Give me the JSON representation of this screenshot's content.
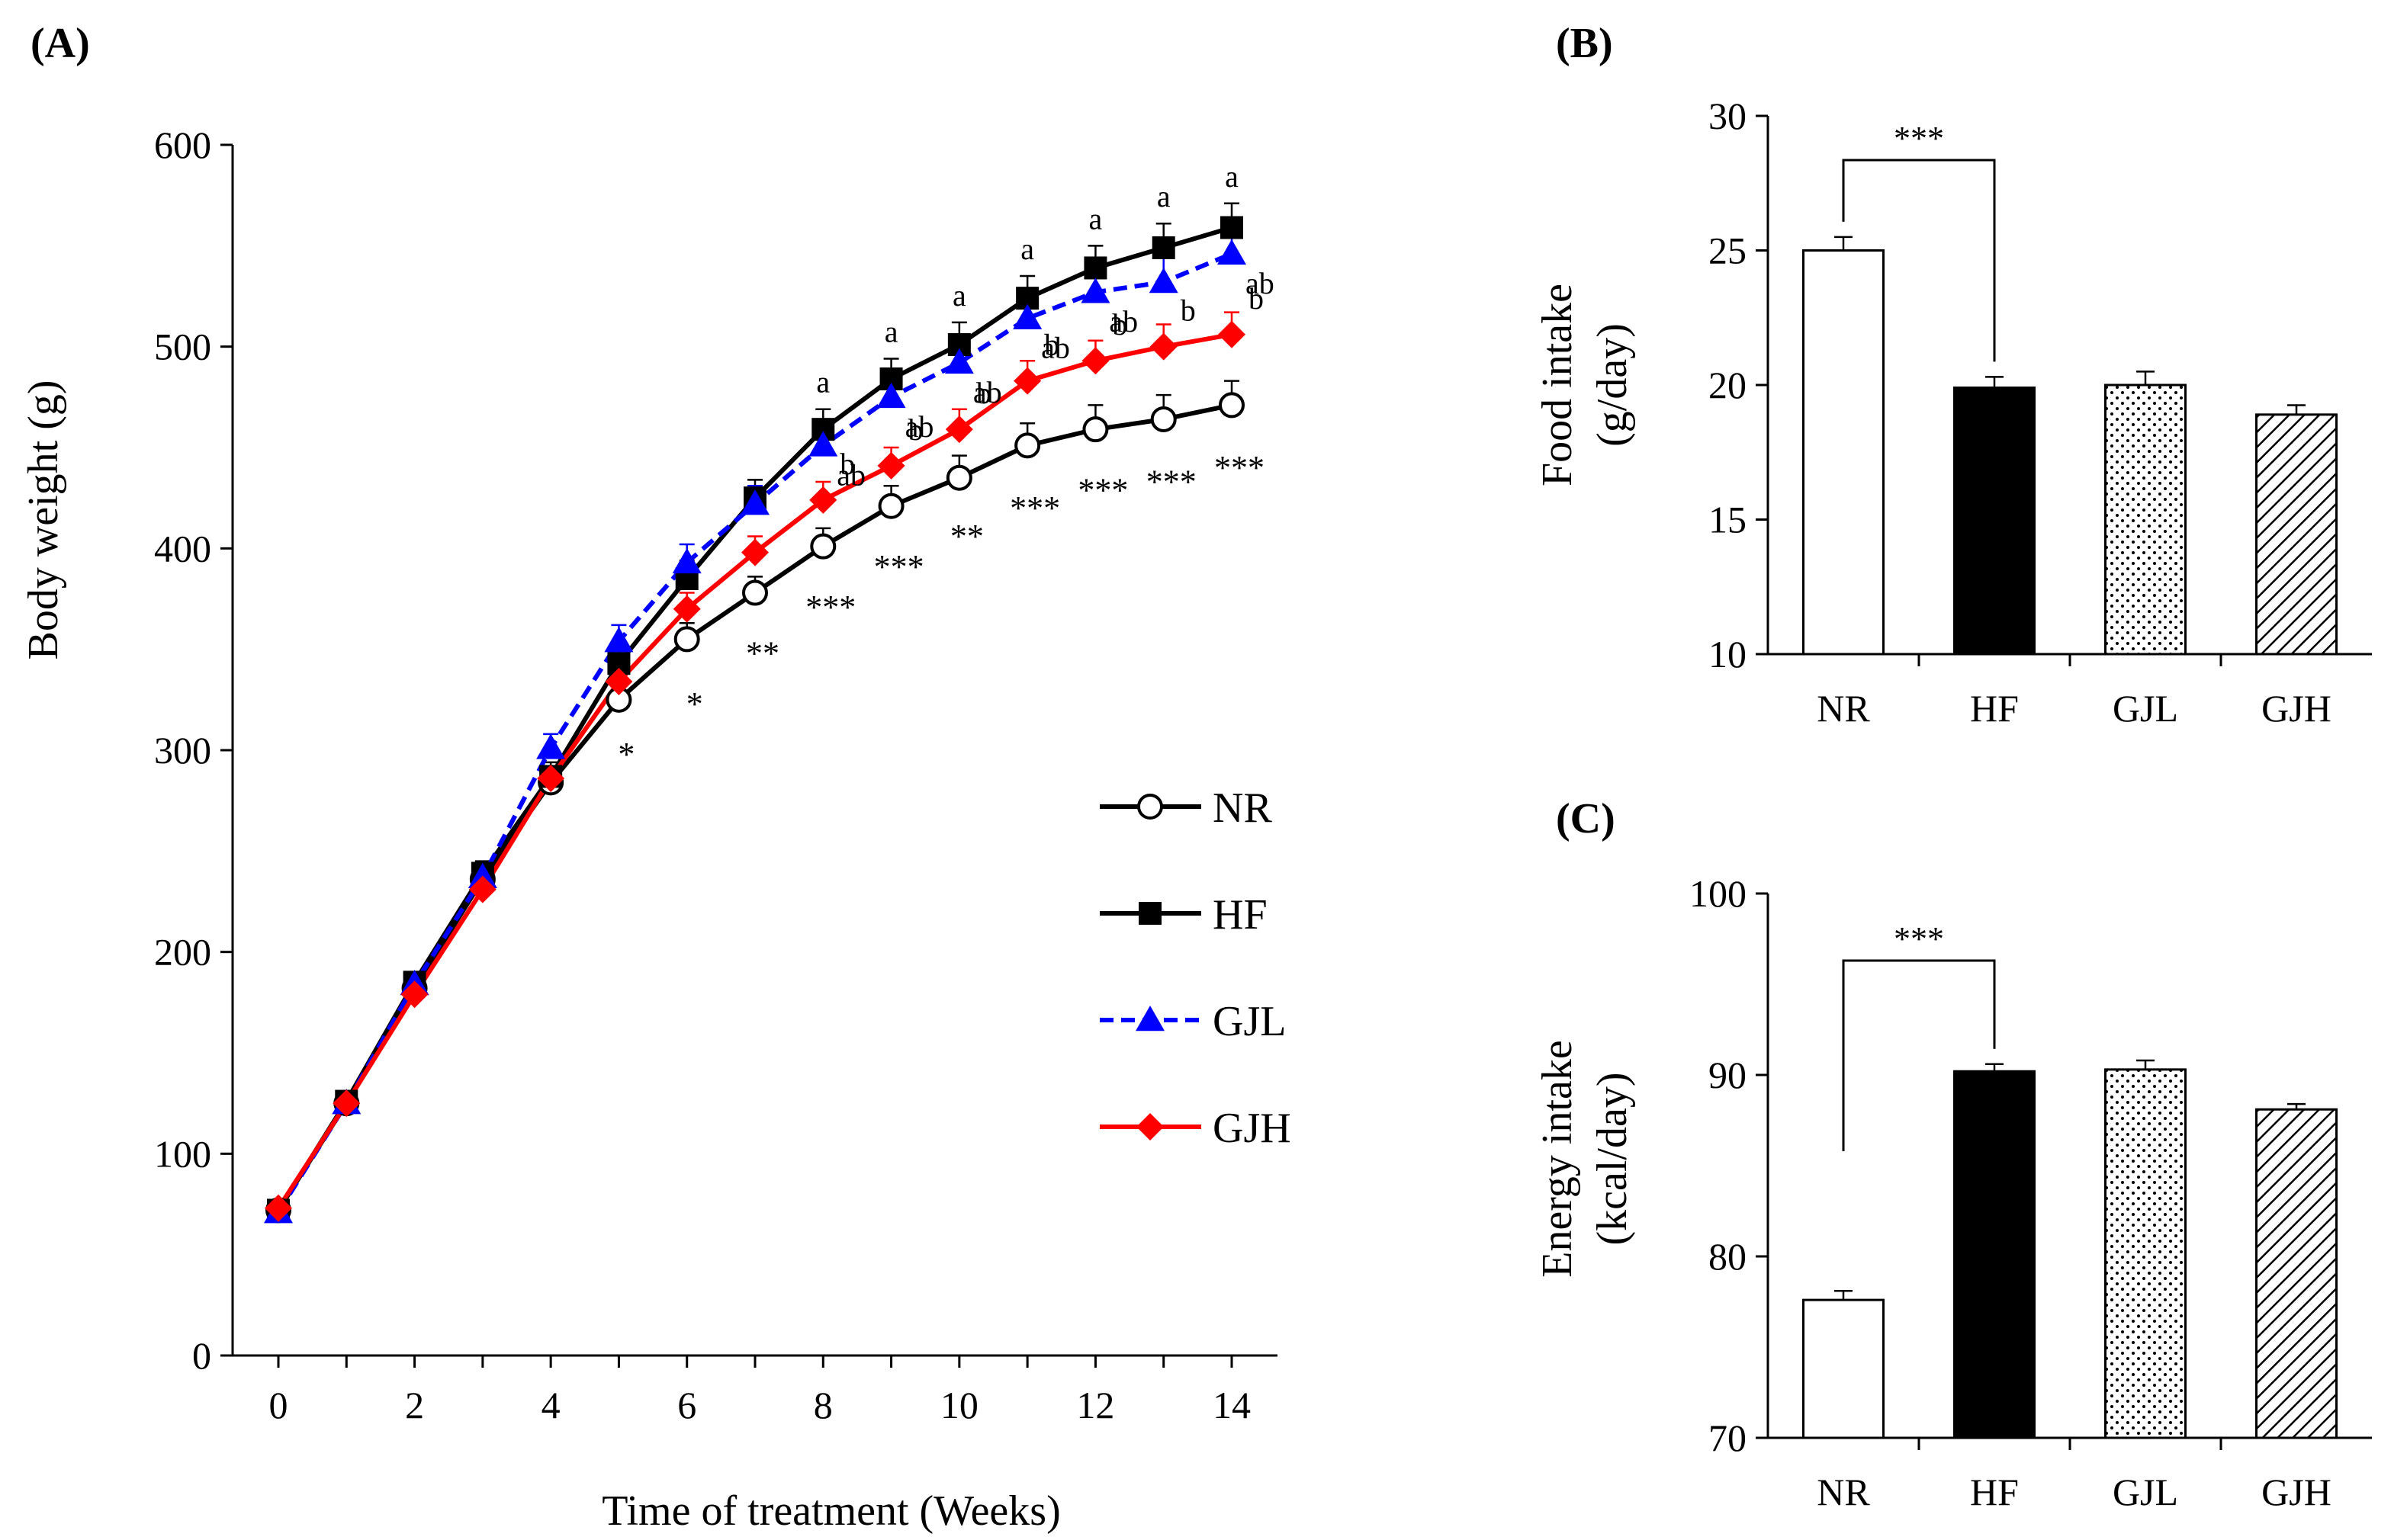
{
  "chart_data": [
    {
      "panel": "(A)",
      "type": "line",
      "xlabel": "Time of treatment  (Weeks)",
      "ylabel": "Body weight  (g)",
      "xlim": [
        0,
        14
      ],
      "ylim": [
        0,
        600
      ],
      "xticks": [
        0,
        2,
        4,
        6,
        8,
        10,
        12,
        14
      ],
      "yticks": [
        0,
        100,
        200,
        300,
        400,
        500,
        600
      ],
      "x": [
        0,
        1,
        2,
        3,
        4,
        5,
        6,
        7,
        8,
        9,
        10,
        11,
        12,
        13,
        14
      ],
      "series": [
        {
          "name": "NR",
          "color": "#000000",
          "marker": "circle-open",
          "dash": false,
          "values": [
            72,
            125,
            182,
            236,
            284,
            325,
            355,
            378,
            401,
            421,
            435,
            451,
            459,
            464,
            471
          ],
          "errors": [
            3,
            4,
            5,
            6,
            6,
            7,
            8,
            8,
            9,
            10,
            11,
            11,
            12,
            12,
            12
          ]
        },
        {
          "name": "HF",
          "color": "#000000",
          "marker": "square",
          "dash": false,
          "values": [
            72,
            126,
            185,
            239,
            287,
            343,
            385,
            425,
            459,
            484,
            501,
            524,
            539,
            549,
            559
          ],
          "errors": [
            3,
            4,
            5,
            6,
            7,
            8,
            9,
            9,
            10,
            10,
            11,
            11,
            11,
            12,
            12
          ]
        },
        {
          "name": "GJL",
          "color": "#0000ff",
          "marker": "triangle",
          "dash": true,
          "values": [
            71,
            125,
            184,
            237,
            301,
            354,
            393,
            422,
            451,
            475,
            492,
            514,
            527,
            532,
            546
          ],
          "errors": [
            3,
            4,
            5,
            6,
            7,
            8,
            9,
            9,
            10,
            10,
            11,
            11,
            12,
            12,
            12
          ]
        },
        {
          "name": "GJH",
          "color": "#ff0000",
          "marker": "diamond",
          "dash": false,
          "values": [
            73,
            125,
            179,
            231,
            286,
            334,
            370,
            398,
            424,
            441,
            459,
            483,
            493,
            500,
            506
          ],
          "errors": [
            3,
            4,
            5,
            6,
            6,
            7,
            8,
            8,
            9,
            9,
            10,
            10,
            10,
            11,
            11
          ]
        }
      ],
      "letters": [
        {
          "x": 8,
          "series": "HF",
          "text": "a"
        },
        {
          "x": 9,
          "series": "HF",
          "text": "a"
        },
        {
          "x": 10,
          "series": "HF",
          "text": "a"
        },
        {
          "x": 11,
          "series": "HF",
          "text": "a"
        },
        {
          "x": 12,
          "series": "HF",
          "text": "a"
        },
        {
          "x": 13,
          "series": "HF",
          "text": "a"
        },
        {
          "x": 14,
          "series": "HF",
          "text": "a"
        },
        {
          "x": 8,
          "series": "GJL",
          "text": "ab"
        },
        {
          "x": 9,
          "series": "GJL",
          "text": "ab"
        },
        {
          "x": 10,
          "series": "GJL",
          "text": "ab"
        },
        {
          "x": 11,
          "series": "GJL",
          "text": "ab"
        },
        {
          "x": 12,
          "series": "GJL",
          "text": "ab"
        },
        {
          "x": 14,
          "series": "GJL",
          "text": "ab"
        },
        {
          "x": 8,
          "series": "GJH",
          "text": "b"
        },
        {
          "x": 9,
          "series": "GJH",
          "text": "b"
        },
        {
          "x": 10,
          "series": "GJH",
          "text": "b"
        },
        {
          "x": 11,
          "series": "GJH",
          "text": "b"
        },
        {
          "x": 12,
          "series": "GJH",
          "text": "b"
        },
        {
          "x": 13,
          "series": "GJH",
          "text": "b"
        },
        {
          "x": 14,
          "series": "GJH",
          "text": "b"
        }
      ],
      "stars": [
        {
          "x": 5,
          "value": 300,
          "text": "*"
        },
        {
          "x": 6,
          "value": 325,
          "text": "*"
        },
        {
          "x": 7,
          "value": 350,
          "text": "**"
        },
        {
          "x": 8,
          "value": 373,
          "text": "***"
        },
        {
          "x": 9,
          "value": 393,
          "text": "***"
        },
        {
          "x": 10,
          "value": 408,
          "text": "**"
        },
        {
          "x": 11,
          "value": 422,
          "text": "***"
        },
        {
          "x": 12,
          "value": 431,
          "text": "***"
        },
        {
          "x": 13,
          "value": 435,
          "text": "***"
        },
        {
          "x": 14,
          "value": 442,
          "text": "***"
        }
      ],
      "legend": "right, middle"
    },
    {
      "panel": "(B)",
      "type": "bar",
      "ylabel_line1": "Food intake",
      "ylabel_line2": "(g/day)",
      "categories": [
        "NR",
        "HF",
        "GJL",
        "GJH"
      ],
      "values": [
        25.0,
        19.9,
        20.0,
        18.9
      ],
      "errors": [
        0.5,
        0.4,
        0.5,
        0.35
      ],
      "fills": [
        "white",
        "black",
        "dots",
        "hatch"
      ],
      "ylim": [
        10,
        30
      ],
      "yticks": [
        10,
        15,
        20,
        25,
        30
      ],
      "significance": {
        "from": "NR",
        "to": "HF",
        "text": "***"
      }
    },
    {
      "panel": "(C)",
      "type": "bar",
      "ylabel_line1": "Energy  intake",
      "ylabel_line2": "(kcal/day)",
      "categories": [
        "NR",
        "HF",
        "GJL",
        "GJH"
      ],
      "values": [
        77.6,
        90.2,
        90.3,
        88.1
      ],
      "errors": [
        0.5,
        0.4,
        0.5,
        0.3
      ],
      "fills": [
        "white",
        "black",
        "dots",
        "hatch"
      ],
      "ylim": [
        70,
        100
      ],
      "yticks": [
        70,
        80,
        90,
        100
      ],
      "significance": {
        "from": "NR",
        "to": "HF",
        "text": "***"
      }
    }
  ]
}
